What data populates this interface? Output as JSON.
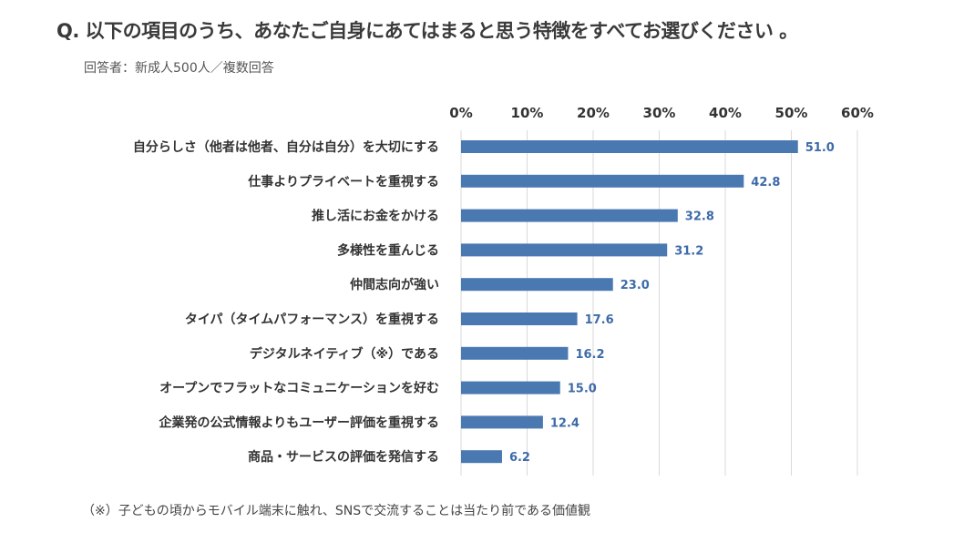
{
  "header": {
    "question": "Q. 以下の項目のうち、あなたご自身にあてはまると思う特徴をすべてお選びください 。",
    "respondents": "回答者：新成人500人／複数回答"
  },
  "footnote": "（※）子どもの頃からモバイル端末に触れ、SNSで交流することは当たり前である価値観",
  "colors": {
    "bar": "#4a78b0",
    "value_label": "#3d6aa8",
    "grid": "#d9d9d9"
  },
  "chart_data": {
    "type": "bar",
    "orientation": "horizontal",
    "categories": [
      "自分らしさ（他者は他者、自分は自分）を大切にする",
      "仕事よりプライベートを重視する",
      "推し活にお金をかける",
      "多様性を重んじる",
      "仲間志向が強い",
      "タイパ（タイムパフォーマンス）を重視する",
      "デジタルネイティブ（※）である",
      "オープンでフラットなコミュニケーションを好む",
      "企業発の公式情報よりもユーザー評価を重視する",
      "商品・サービスの評価を発信する"
    ],
    "values": [
      51.0,
      42.8,
      32.8,
      31.2,
      23.0,
      17.6,
      16.2,
      15.0,
      12.4,
      6.2
    ],
    "value_labels": [
      "51.0",
      "42.8",
      "32.8",
      "31.2",
      "23.0",
      "17.6",
      "16.2",
      "15.0",
      "12.4",
      "6.2"
    ],
    "xlim": [
      0,
      60
    ],
    "ticks": [
      0,
      10,
      20,
      30,
      40,
      50,
      60
    ],
    "tick_labels": [
      "0%",
      "10%",
      "20%",
      "30%",
      "40%",
      "50%",
      "60%"
    ],
    "axis_position": "top",
    "grid": true,
    "legend": false
  }
}
